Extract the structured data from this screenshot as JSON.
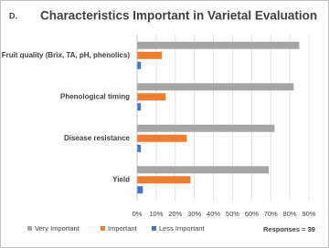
{
  "chart_data": {
    "type": "hbar",
    "panel_label": "D.",
    "title": "Characteristics Important in Varietal Evaluation",
    "categories": [
      "Fruit quality (Brix, TA, pH, phenolics)",
      "Phenological timing",
      "Disease resistance",
      "Yield"
    ],
    "series": [
      {
        "name": "Very Important",
        "color": "#a5a5a5",
        "values": [
          85,
          82,
          72,
          69
        ]
      },
      {
        "name": "Important",
        "color": "#ed7d31",
        "values": [
          13,
          15,
          26,
          28
        ]
      },
      {
        "name": "Less Important",
        "color": "#4472c4",
        "values": [
          2,
          2,
          2,
          3
        ]
      }
    ],
    "xlim": [
      0,
      90
    ],
    "xticks": [
      {
        "value": 0,
        "label": "0%"
      },
      {
        "value": 10,
        "label": "10%"
      },
      {
        "value": 20,
        "label": "20%"
      },
      {
        "value": 30,
        "label": "30%"
      },
      {
        "value": 40,
        "label": "40%"
      },
      {
        "value": 50,
        "label": "50%"
      },
      {
        "value": 60,
        "label": "60%"
      },
      {
        "value": 70,
        "label": "70%"
      },
      {
        "value": 80,
        "label": "80%"
      },
      {
        "value": 90,
        "label": "90%"
      }
    ],
    "grid": true,
    "legend": "bottom",
    "annotation": "Responses = 39"
  }
}
